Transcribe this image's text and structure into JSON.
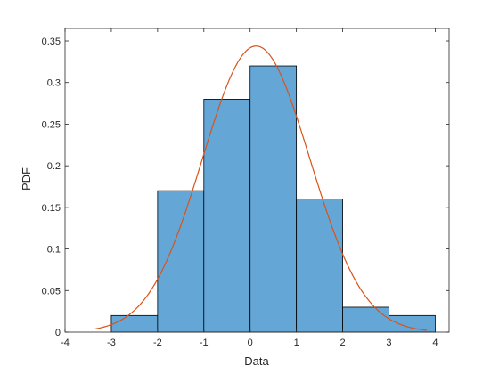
{
  "chart_data": {
    "type": "bar",
    "xlabel": "Data",
    "ylabel": "PDF",
    "xlim": [
      -4,
      4.3
    ],
    "ylim": [
      0,
      0.365
    ],
    "xticks": [
      -4,
      -3,
      -2,
      -1,
      0,
      1,
      2,
      3,
      4
    ],
    "yticks": [
      0,
      0.05,
      0.1,
      0.15,
      0.2,
      0.25,
      0.3,
      0.35
    ],
    "xtick_labels": [
      "-4",
      "-3",
      "-2",
      "-1",
      "0",
      "1",
      "2",
      "3",
      "4"
    ],
    "ytick_labels": [
      "0",
      "0.05",
      "0.1",
      "0.15",
      "0.2",
      "0.25",
      "0.3",
      "0.35"
    ],
    "grid": false,
    "bins": [
      {
        "x0": -3,
        "x1": -2,
        "value": 0.02
      },
      {
        "x0": -2,
        "x1": -1,
        "value": 0.17
      },
      {
        "x0": -1,
        "x1": 0,
        "value": 0.28
      },
      {
        "x0": 0,
        "x1": 1,
        "value": 0.32
      },
      {
        "x0": 1,
        "x1": 2,
        "value": 0.16
      },
      {
        "x0": 2,
        "x1": 3,
        "value": 0.03
      },
      {
        "x0": 3,
        "x1": 4,
        "value": 0.02
      }
    ],
    "fit_curve": {
      "type": "normal",
      "mu": 0.13,
      "sigma": 1.16,
      "x_range": [
        -3.35,
        3.82
      ]
    },
    "colors": {
      "bar_fill": "#64a7d7",
      "bar_edge": "#000000",
      "curve": "#d95319",
      "axis": "#262626"
    }
  }
}
